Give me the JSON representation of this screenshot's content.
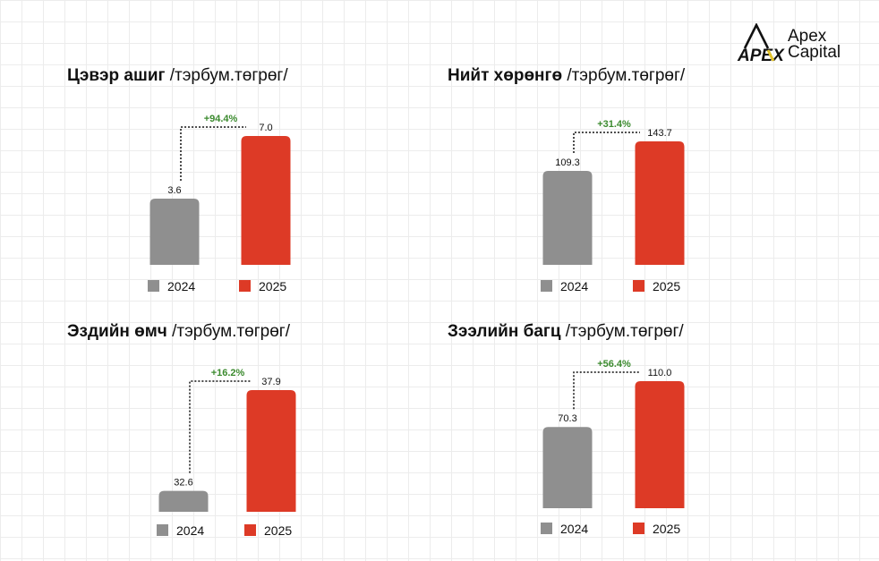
{
  "logo": {
    "mark_text": "APEX",
    "word1": "Apex",
    "word2": "Capital"
  },
  "colors": {
    "bar_2024": "#8f8f8f",
    "bar_2025": "#dd3a26",
    "growth_text": "#3b8a2e",
    "value_text": "#111111"
  },
  "chart_data": [
    {
      "type": "bar",
      "title": "Цэвэр ашиг",
      "unit": "/тэрбум.төгрөг/",
      "categories": [
        "2024",
        "2025"
      ],
      "values": [
        3.6,
        7.0
      ],
      "value_labels": [
        "3.6",
        "7.0"
      ],
      "growth_label": "+94.4%",
      "legend": [
        "2024",
        "2025"
      ],
      "ylim": [
        0,
        7.0
      ]
    },
    {
      "type": "bar",
      "title": "Нийт хөрөнгө",
      "unit": "/тэрбум.төгрөг/",
      "categories": [
        "2024",
        "2025"
      ],
      "values": [
        109.3,
        143.7
      ],
      "value_labels": [
        "109.3",
        "143.7"
      ],
      "growth_label": "+31.4%",
      "legend": [
        "2024",
        "2025"
      ],
      "ylim": [
        0,
        143.7
      ]
    },
    {
      "type": "bar",
      "title": "Эздийн өмч",
      "unit": "/тэрбум.төгрөг/",
      "categories": [
        "2024",
        "2025"
      ],
      "values": [
        32.6,
        37.9
      ],
      "value_labels": [
        "32.6",
        "37.9"
      ],
      "growth_label": "+16.2%",
      "legend": [
        "2024",
        "2025"
      ],
      "ylim": [
        31.5,
        37.9
      ]
    },
    {
      "type": "bar",
      "title": "Зээлийн багц",
      "unit": "/тэрбум.төгрөг/",
      "categories": [
        "2024",
        "2025"
      ],
      "values": [
        70.3,
        110.0
      ],
      "value_labels": [
        "70.3",
        "110.0"
      ],
      "growth_label": "+56.4%",
      "legend": [
        "2024",
        "2025"
      ],
      "ylim": [
        0,
        110.0
      ]
    }
  ]
}
